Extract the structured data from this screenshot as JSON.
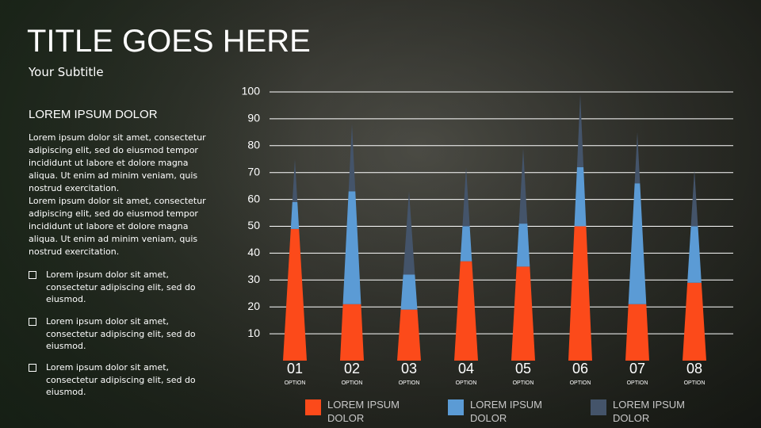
{
  "title": "TITLE GOES HERE",
  "subtitle": "Your Subtitle",
  "panel": {
    "heading": "LOREM IPSUM DOLOR",
    "paragraphs": [
      "Lorem ipsum dolor sit amet, consectetur adipiscing elit, sed do eiusmod tempor incididunt ut labore et dolore magna aliqua. Ut enim ad minim veniam, quis nostrud exercitation.",
      "Lorem ipsum dolor sit amet, consectetur adipiscing elit, sed do eiusmod tempor incididunt ut labore et dolore magna aliqua. Ut enim ad minim veniam, quis nostrud exercitation."
    ],
    "bullets": [
      "Lorem ipsum dolor sit amet, consectetur adipiscing elit, sed do eiusmod.",
      "Lorem ipsum dolor sit amet, consectetur adipiscing elit, sed do eiusmod.",
      "Lorem ipsum dolor sit amet, consectetur adipiscing elit, sed do eiusmod."
    ]
  },
  "chart_data": {
    "type": "stacked-cone",
    "categories": [
      "01",
      "02",
      "03",
      "04",
      "05",
      "06",
      "07",
      "08"
    ],
    "category_sublabels": [
      "OPTION",
      "OPTION",
      "OPTION",
      "OPTION",
      "OPTION",
      "OPTION",
      "OPTION",
      "OPTION"
    ],
    "series": [
      {
        "name": "LOREM IPSUM DOLOR",
        "color": "#fc4a1a",
        "values": [
          49,
          21,
          19,
          37,
          35,
          50,
          21,
          29
        ]
      },
      {
        "name": "LOREM IPSUM DOLOR",
        "color": "#5b9bd5",
        "values": [
          10,
          42,
          13,
          13,
          16,
          22,
          45,
          21
        ]
      },
      {
        "name": "LOREM IPSUM DOLOR",
        "color": "#44546a",
        "values": [
          16,
          25,
          31,
          22,
          28,
          27,
          19,
          21
        ]
      }
    ],
    "ylim": [
      0,
      100
    ],
    "yticks": [
      10,
      20,
      30,
      40,
      50,
      60,
      70,
      80,
      90,
      100
    ],
    "grid": true
  }
}
